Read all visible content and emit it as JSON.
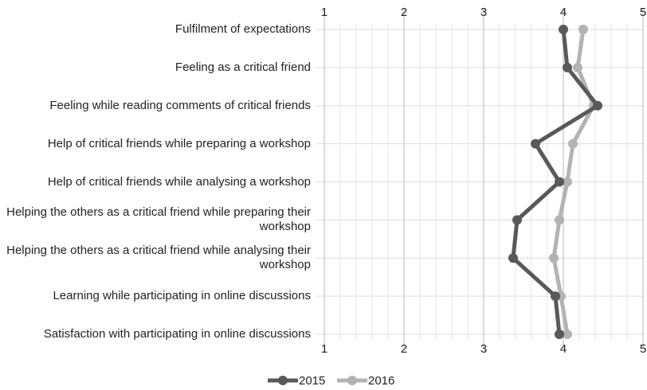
{
  "chart_data": {
    "type": "line",
    "orientation": "horizontal",
    "categories": [
      "Fulfilment of expectations",
      "Feeling as a critical friend",
      "Feeling while reading comments of critical friends",
      "Help of critical friends while preparing a workshop",
      "Help of critical friends while analysing a workshop",
      "Helping the others as a critical friend while preparing their workshop",
      "Helping the others as a critical friend while analysing their workshop",
      "Learning while participating in online discussions",
      "Satisfaction with participating in online discussions"
    ],
    "series": [
      {
        "name": "2015",
        "color": "#595959",
        "values": [
          4.0,
          4.05,
          4.43,
          3.65,
          3.95,
          3.42,
          3.37,
          3.9,
          3.95
        ]
      },
      {
        "name": "2016",
        "color": "#b3b3b3",
        "values": [
          4.25,
          4.18,
          4.38,
          4.12,
          4.05,
          3.95,
          3.88,
          3.97,
          4.05
        ]
      }
    ],
    "xlim": [
      1,
      5
    ],
    "xticks": [
      1,
      2,
      3,
      4,
      5
    ],
    "grid": true,
    "legend": "bottom"
  }
}
